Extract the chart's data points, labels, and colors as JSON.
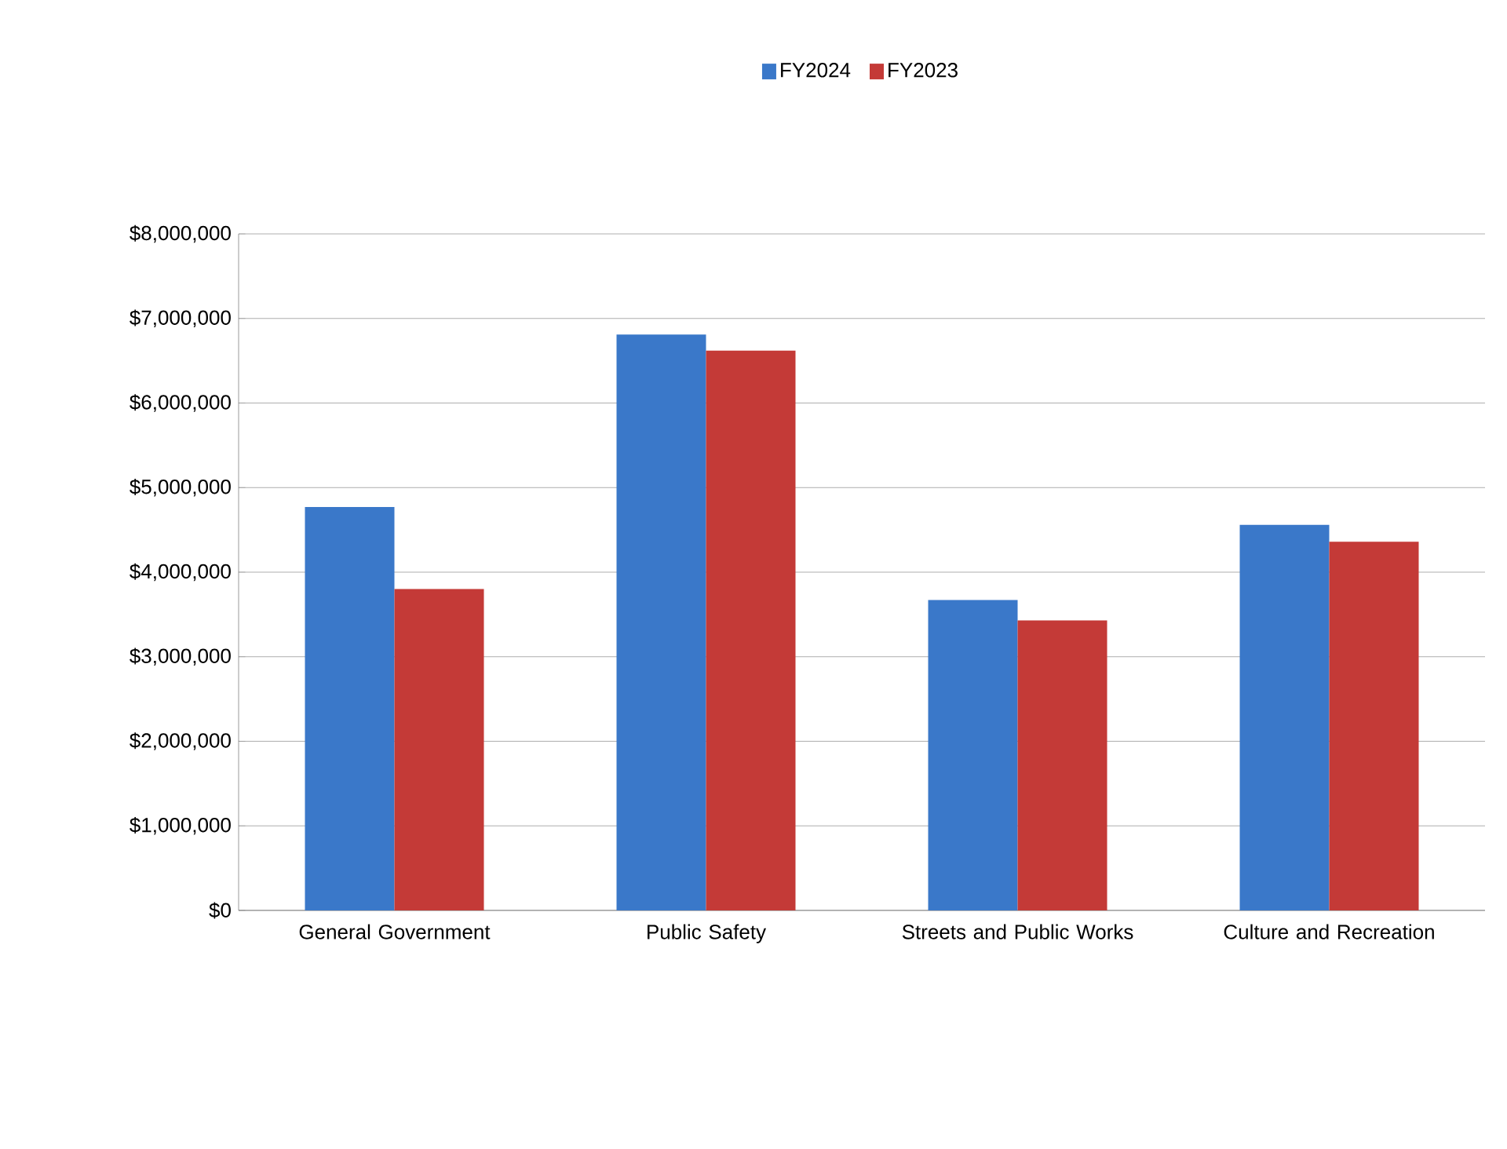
{
  "chart_data": {
    "type": "bar",
    "categories": [
      "General Government",
      "Public Safety",
      "Streets and Public Works",
      "Culture and Recreation"
    ],
    "series": [
      {
        "name": "FY2024",
        "color": "#3a78c9",
        "values": [
          4770000,
          6810000,
          3670000,
          4560000
        ]
      },
      {
        "name": "FY2023",
        "color": "#c43a37",
        "values": [
          3800000,
          6620000,
          3430000,
          4360000
        ]
      }
    ],
    "ylim": [
      0,
      8000000
    ],
    "yticks": [
      {
        "value": 0,
        "label": "$0"
      },
      {
        "value": 1000000,
        "label": "$1,000,000"
      },
      {
        "value": 2000000,
        "label": "$2,000,000"
      },
      {
        "value": 3000000,
        "label": "$3,000,000"
      },
      {
        "value": 4000000,
        "label": "$4,000,000"
      },
      {
        "value": 5000000,
        "label": "$5,000,000"
      },
      {
        "value": 6000000,
        "label": "$6,000,000"
      },
      {
        "value": 7000000,
        "label": "$7,000,000"
      },
      {
        "value": 8000000,
        "label": "$8,000,000"
      }
    ],
    "grid": "y",
    "legend": "top"
  }
}
